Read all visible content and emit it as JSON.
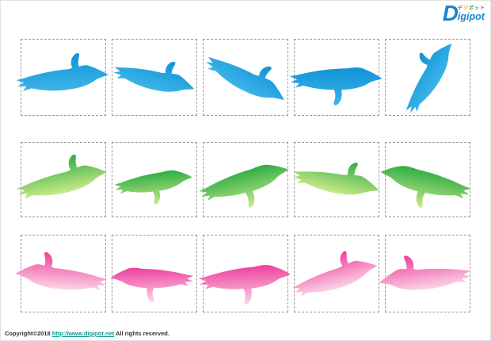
{
  "brand": {
    "logo_d": "D",
    "logo_rest": "igipot",
    "logo_small_text": "デジポット",
    "logo_small_colors": [
      "#e8380d",
      "#f6a800",
      "#39a838",
      "#0f9ed9",
      "#8f4fa8"
    ],
    "logo_blue": "#1886cf"
  },
  "grid": {
    "border_color": "#999999",
    "columns": 5,
    "rows": [
      {
        "label": "blue-penguins",
        "gradient_top": "#1093d7",
        "gradient_bottom": "#3cb4e8"
      },
      {
        "label": "green-penguins",
        "gradient_top": "#2fad43",
        "gradient_bottom": "#cbe98a"
      },
      {
        "label": "pink-penguins",
        "gradient_top": "#ee3f9d",
        "gradient_bottom": "#fbd4e5"
      }
    ],
    "cell_count": 15,
    "item_description": "swimming penguin silhouette"
  },
  "footer": {
    "copyright_prefix": "Copyright©2018",
    "link_text": "http://www.digipot.net",
    "link_color": "#0a9d8e",
    "suffix": "All rights reserved."
  }
}
